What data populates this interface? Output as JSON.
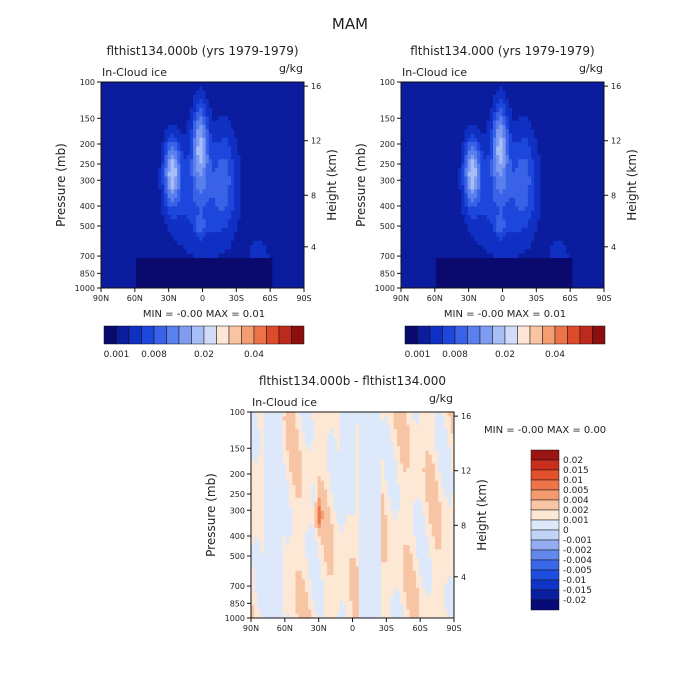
{
  "figure_title": "MAM",
  "colors": {
    "abs_scale": [
      "#0a0a6e",
      "#0b1c9e",
      "#1030c4",
      "#1c46dc",
      "#3a62e6",
      "#5a7fee",
      "#7f9cf2",
      "#a8bef6",
      "#d2dcf8",
      "#fde6d6",
      "#f8c4a2",
      "#f49d73",
      "#ec7248",
      "#dc4b2a",
      "#bd2a1c",
      "#8c0f0f"
    ],
    "diff_scale": [
      "#070b78",
      "#0a1ea2",
      "#0f35c6",
      "#1d4ee0",
      "#3a68e8",
      "#6388ec",
      "#93acf2",
      "#c2d4f6",
      "#dde9fa",
      "#fde8d6",
      "#f7c5a4",
      "#f39c70",
      "#ee744a",
      "#e2502c",
      "#c82e1c",
      "#9c1515"
    ]
  },
  "chart_data": [
    {
      "type": "heatmap",
      "title": "flthist134.000b (yrs 1979-1979)",
      "left_label": "In-Cloud ice",
      "right_label": "g/kg",
      "ylabel": "Pressure (mb)",
      "ylabel_right": "Height (km)",
      "x_ticks": [
        "90N",
        "60N",
        "30N",
        "0",
        "30S",
        "60S",
        "90S"
      ],
      "y_ticks": [
        "100",
        "150",
        "200",
        "250",
        "300",
        "400",
        "500",
        "700",
        "850",
        "1000"
      ],
      "y_ticks_right": [
        "16",
        "12",
        "8",
        "4"
      ],
      "stats": "MIN =   -0.00   MAX =    0.01",
      "colorbar_labels": [
        "0.001",
        "0.008",
        "0.02",
        "0.04"
      ]
    },
    {
      "type": "heatmap",
      "title": "flthist134.000 (yrs 1979-1979)",
      "left_label": "In-Cloud ice",
      "right_label": "g/kg",
      "ylabel": "Pressure (mb)",
      "ylabel_right": "Height (km)",
      "x_ticks": [
        "90N",
        "60N",
        "30N",
        "0",
        "30S",
        "60S",
        "90S"
      ],
      "y_ticks": [
        "100",
        "150",
        "200",
        "250",
        "300",
        "400",
        "500",
        "700",
        "850",
        "1000"
      ],
      "y_ticks_right": [
        "16",
        "12",
        "8",
        "4"
      ],
      "stats": "MIN =   -0.00   MAX =    0.01",
      "colorbar_labels": [
        "0.001",
        "0.008",
        "0.02",
        "0.04"
      ]
    },
    {
      "type": "heatmap",
      "title": "flthist134.000b - flthist134.000",
      "left_label": "In-Cloud ice",
      "right_label": "g/kg",
      "ylabel": "Pressure (mb)",
      "ylabel_right": "Height (km)",
      "x_ticks": [
        "90N",
        "60N",
        "30N",
        "0",
        "30S",
        "60S",
        "90S"
      ],
      "y_ticks": [
        "100",
        "150",
        "200",
        "250",
        "300",
        "400",
        "500",
        "700",
        "850",
        "1000"
      ],
      "y_ticks_right": [
        "16",
        "12",
        "8",
        "4"
      ],
      "stats": "MIN =   -0.00   MAX =    0.00",
      "colorbar_labels": [
        "0.02",
        "0.015",
        "0.01",
        "0.005",
        "0.004",
        "0.002",
        "0.001",
        "0",
        "-0.001",
        "-0.002",
        "-0.004",
        "-0.005",
        "-0.01",
        "-0.015",
        "-0.02"
      ]
    }
  ]
}
